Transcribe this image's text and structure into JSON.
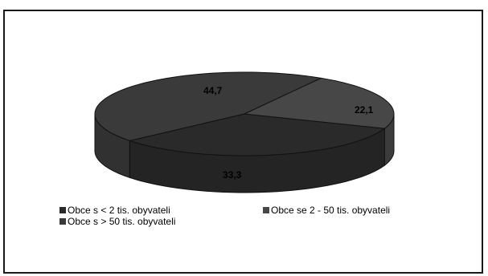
{
  "chart_data": {
    "type": "pie",
    "style": "3d",
    "categories": [
      "Obce s < 2 tis. obyvateli",
      "Obce se 2 - 50 tis. obyvateli",
      "Obce s > 50 tis. obyvateli"
    ],
    "values": [
      33.3,
      22.1,
      44.7
    ],
    "data_labels": [
      "33,3",
      "22,1",
      "44,7"
    ],
    "colors": [
      "#2a2a2a",
      "#474747",
      "#3a3a3a"
    ],
    "legend": "bottom",
    "title": ""
  }
}
